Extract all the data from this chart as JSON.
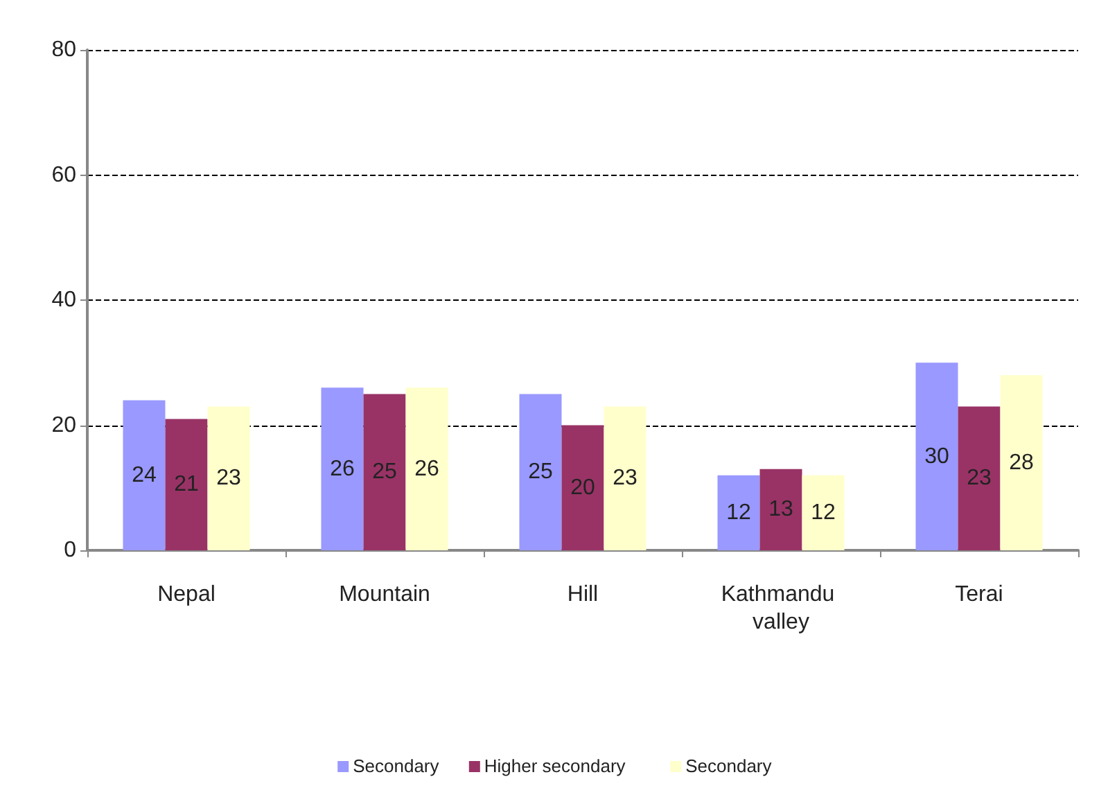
{
  "chart_data": {
    "type": "bar",
    "categories": [
      "Nepal",
      "Mountain",
      "Hill",
      "Kathmandu valley",
      "Terai"
    ],
    "series": [
      {
        "name": "Secondary",
        "color": "#9999ff",
        "values": [
          24,
          26,
          25,
          12,
          30
        ]
      },
      {
        "name": "Higher secondary",
        "color": "#993366",
        "values": [
          21,
          25,
          20,
          13,
          23
        ]
      },
      {
        "name": "Secondary",
        "color": "#ffffcc",
        "values": [
          23,
          26,
          23,
          12,
          28
        ]
      }
    ],
    "ylim": [
      0,
      80
    ],
    "yticks": [
      0,
      20,
      40,
      60,
      80
    ],
    "grid": "y",
    "legend": "bottom",
    "data_labels": true
  }
}
